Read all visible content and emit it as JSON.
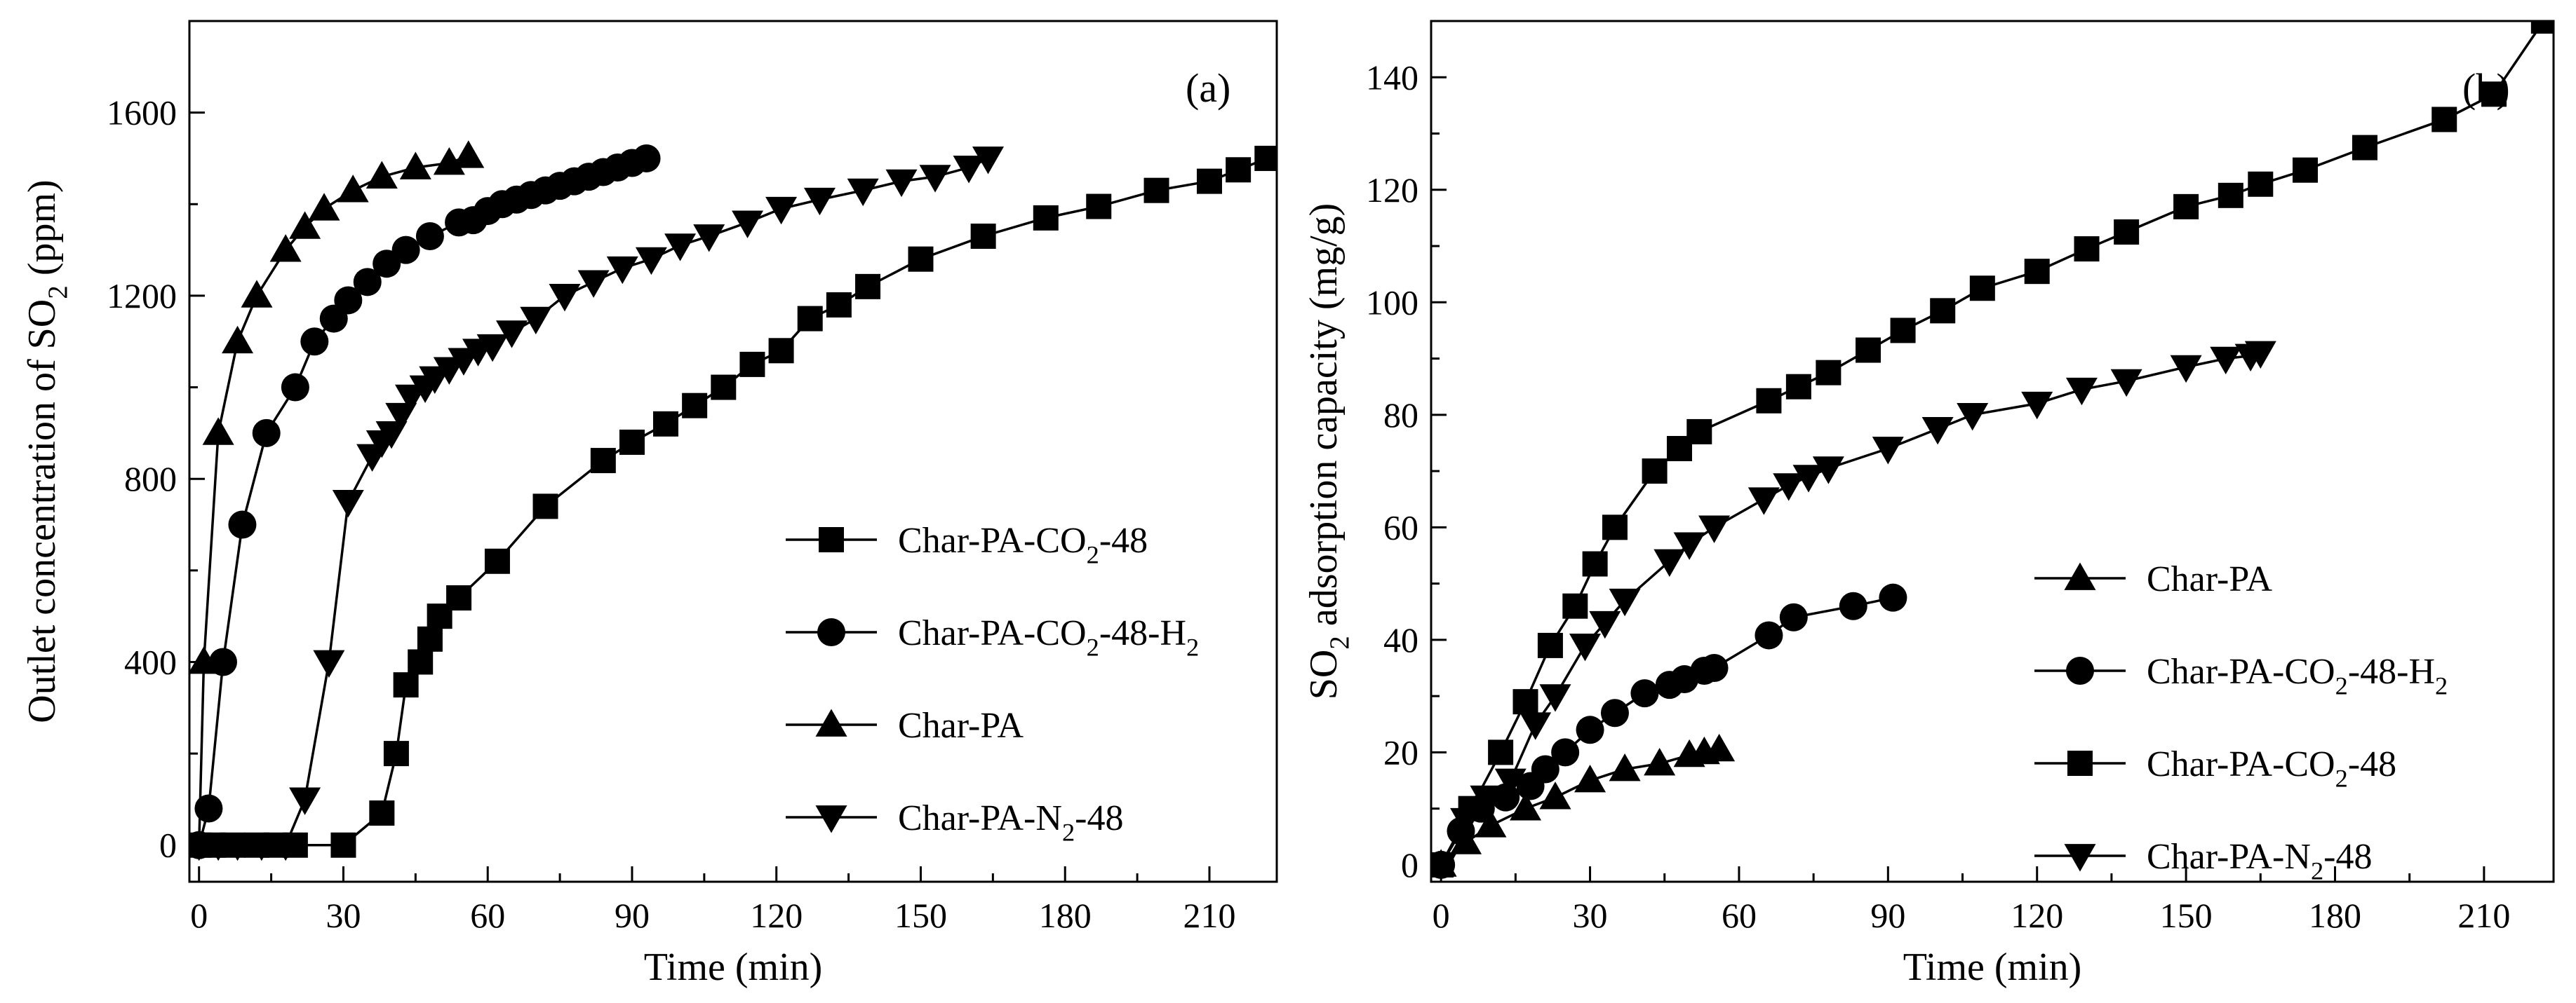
{
  "chart_data": [
    {
      "panel": "(a)",
      "type": "line",
      "xlabel": "Time (min)",
      "ylabel": {
        "pre": "Outlet concentration of SO",
        "sub": "2",
        "post": " (ppm)"
      },
      "xlim": [
        -2,
        224
      ],
      "ylim": [
        -80,
        1800
      ],
      "xticks": [
        "0",
        "30",
        "60",
        "90",
        "120",
        "150",
        "180",
        "210"
      ],
      "yticks": [
        "0",
        "400",
        "800",
        "1200",
        "1600"
      ],
      "legend_position": "lower-right",
      "series": [
        {
          "name": "Char-PA-CO2-48",
          "label": [
            {
              "t": "Char-PA-CO"
            },
            {
              "t": "2",
              "sub": true
            },
            {
              "t": "-48"
            }
          ],
          "marker": "square",
          "x": [
            0,
            3,
            7,
            12,
            16,
            20,
            30,
            38,
            41,
            43,
            46,
            48,
            50,
            54,
            62,
            72,
            84,
            90,
            97,
            103,
            109,
            115,
            121,
            127,
            133,
            139,
            150,
            163,
            176,
            187,
            199,
            210,
            216,
            222
          ],
          "y": [
            0,
            0,
            0,
            0,
            0,
            0,
            0,
            70,
            200,
            350,
            400,
            450,
            500,
            540,
            620,
            740,
            840,
            880,
            920,
            960,
            1000,
            1050,
            1080,
            1150,
            1180,
            1220,
            1280,
            1330,
            1370,
            1395,
            1430,
            1450,
            1475,
            1500
          ]
        },
        {
          "name": "Char-PA-CO2-48-H2",
          "label": [
            {
              "t": "Char-PA-CO"
            },
            {
              "t": "2",
              "sub": true
            },
            {
              "t": "-48-H"
            },
            {
              "t": "2",
              "sub": true
            }
          ],
          "marker": "circle",
          "x": [
            0,
            2,
            5,
            9,
            14,
            20,
            24,
            28,
            31,
            35,
            39,
            43,
            48,
            54,
            57,
            60,
            63,
            66,
            69,
            72,
            75,
            78,
            81,
            84,
            87,
            90,
            93
          ],
          "y": [
            0,
            80,
            400,
            700,
            900,
            1000,
            1100,
            1150,
            1190,
            1230,
            1270,
            1300,
            1330,
            1360,
            1365,
            1385,
            1400,
            1410,
            1420,
            1430,
            1440,
            1450,
            1460,
            1470,
            1480,
            1490,
            1500
          ]
        },
        {
          "name": "Char-PA",
          "label": [
            {
              "t": "Char-PA"
            }
          ],
          "marker": "triangle-up",
          "x": [
            0,
            1,
            4,
            8,
            12,
            18,
            22,
            26,
            32,
            38,
            45,
            52,
            56
          ],
          "y": [
            0,
            400,
            900,
            1100,
            1200,
            1300,
            1350,
            1390,
            1430,
            1460,
            1480,
            1490,
            1505
          ]
        },
        {
          "name": "Char-PA-N2-48",
          "label": [
            {
              "t": "Char-PA-N"
            },
            {
              "t": "2",
              "sub": true
            },
            {
              "t": "-48"
            }
          ],
          "marker": "triangle-down",
          "x": [
            0,
            4,
            8,
            13,
            18,
            22,
            27,
            31,
            36,
            38,
            40,
            42,
            44,
            47,
            49,
            52,
            55,
            58,
            61,
            65,
            70,
            76,
            82,
            88,
            94,
            100,
            106,
            114,
            121,
            129,
            138,
            146,
            153,
            160,
            164
          ],
          "y": [
            0,
            0,
            0,
            0,
            0,
            100,
            400,
            750,
            850,
            880,
            900,
            940,
            980,
            1000,
            1020,
            1040,
            1060,
            1080,
            1090,
            1120,
            1150,
            1200,
            1230,
            1260,
            1280,
            1310,
            1330,
            1360,
            1390,
            1410,
            1430,
            1450,
            1460,
            1480,
            1500
          ]
        }
      ]
    },
    {
      "panel": "(b)",
      "type": "line",
      "xlabel": "Time (min)",
      "ylabel": {
        "pre": "SO",
        "sub": "2",
        "post": " adsorption capacity (mg/g)"
      },
      "xlim": [
        -2,
        224
      ],
      "ylim": [
        -3,
        150
      ],
      "xticks": [
        "0",
        "30",
        "60",
        "90",
        "120",
        "150",
        "180",
        "210"
      ],
      "yticks": [
        "0",
        "20",
        "40",
        "60",
        "80",
        "100",
        "120",
        "140"
      ],
      "legend_position": "lower-right",
      "series": [
        {
          "name": "Char-PA",
          "label": [
            {
              "t": "Char-PA"
            }
          ],
          "marker": "triangle-up",
          "x": [
            0,
            5,
            10,
            17,
            23,
            30,
            37,
            44,
            50,
            53,
            56
          ],
          "y": [
            0,
            4,
            7,
            10,
            12,
            15,
            17,
            18,
            19.5,
            20,
            20.5
          ]
        },
        {
          "name": "Char-PA-CO2-48-H2",
          "label": [
            {
              "t": "Char-PA-CO"
            },
            {
              "t": "2",
              "sub": true
            },
            {
              "t": "-48-H"
            },
            {
              "t": "2",
              "sub": true
            }
          ],
          "marker": "circle",
          "x": [
            0,
            4,
            8,
            13,
            18,
            21,
            25,
            30,
            35,
            41,
            46,
            49,
            53,
            55,
            66,
            71,
            83,
            91
          ],
          "y": [
            0,
            6,
            10,
            12,
            14,
            17,
            20,
            24,
            27,
            30.5,
            32,
            33,
            34.5,
            35,
            40.8,
            44,
            46,
            47.5
          ]
        },
        {
          "name": "Char-PA-CO2-48",
          "label": [
            {
              "t": "Char-PA-CO"
            },
            {
              "t": "2",
              "sub": true
            },
            {
              "t": "-48"
            }
          ],
          "marker": "square",
          "x": [
            0,
            6,
            12,
            17,
            22,
            27,
            31,
            35,
            43,
            48,
            52,
            66,
            72,
            78,
            86,
            93,
            101,
            109,
            120,
            130,
            138,
            150,
            159,
            165,
            174,
            186,
            202,
            212,
            222
          ],
          "y": [
            0,
            10,
            20,
            29,
            39,
            46,
            53.5,
            60,
            70,
            74,
            77,
            82.5,
            85,
            87.5,
            91.5,
            95,
            98.5,
            102.5,
            105.5,
            109.5,
            112.5,
            117,
            119,
            121,
            123.5,
            127.5,
            132.5,
            137,
            150
          ]
        },
        {
          "name": "Char-PA-N2-48",
          "label": [
            {
              "t": "Char-PA-N"
            },
            {
              "t": "2",
              "sub": true
            },
            {
              "t": "-48"
            }
          ],
          "marker": "triangle-down",
          "x": [
            0,
            5,
            9,
            14,
            19,
            23,
            29,
            33,
            37,
            46,
            50,
            55,
            65,
            70,
            74,
            78,
            90,
            100,
            107,
            120,
            129,
            138,
            150,
            158,
            163,
            165
          ],
          "y": [
            0,
            8,
            12,
            15,
            25,
            30,
            39,
            43,
            47,
            54,
            57,
            60,
            65,
            67.5,
            69,
            70.5,
            74,
            77.5,
            80,
            82,
            84.5,
            86,
            88.5,
            90,
            90.5,
            91
          ]
        }
      ]
    }
  ]
}
